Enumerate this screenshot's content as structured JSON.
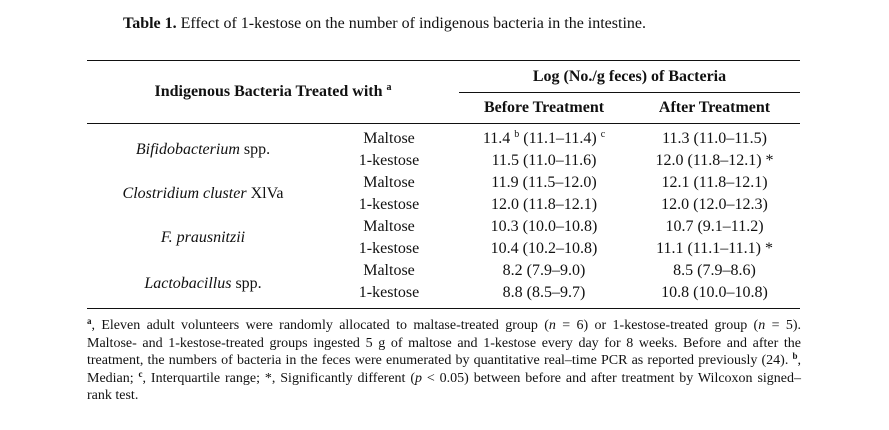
{
  "caption": {
    "label": "Table 1.",
    "text": "Effect of 1-kestose on the number of indigenous bacteria in the intestine."
  },
  "header": {
    "col1": "Indigenous Bacteria Treated with",
    "col1_sup": "a",
    "group": "Log (No./g feces) of Bacteria",
    "before": "Before Treatment",
    "after": "After Treatment"
  },
  "rows": [
    {
      "bacteria_italic": "Bifidobacterium",
      "bacteria_rest": " spp.",
      "treatment": "Maltose",
      "before_main": "11.4",
      "before_sup1": "b",
      "before_iqr": "(11.1–11.4)",
      "before_sup2": "c",
      "after": "11.3 (11.0–11.5)"
    },
    {
      "treatment": "1-kestose",
      "before": "11.5 (11.0–11.6)",
      "after": "12.0 (11.8–12.1) *"
    },
    {
      "bacteria_italic": "Clostridium cluster",
      "bacteria_rest": " XlVa",
      "treatment": "Maltose",
      "before": "11.9 (11.5–12.0)",
      "after": "12.1 (11.8–12.1)"
    },
    {
      "treatment": "1-kestose",
      "before": "12.0 (11.8–12.1)",
      "after": "12.0 (12.0–12.3)"
    },
    {
      "bacteria_italic": "F. prausnitzii",
      "bacteria_rest": "",
      "treatment": "Maltose",
      "before": "10.3 (10.0–10.8)",
      "after": "10.7 (9.1–11.2)"
    },
    {
      "treatment": "1-kestose",
      "before": "10.4 (10.2–10.8)",
      "after": "11.1 (11.1–11.1) *"
    },
    {
      "bacteria_italic": "Lactobacillus",
      "bacteria_rest": " spp.",
      "treatment": "Maltose",
      "before": "8.2 (7.9–9.0)",
      "after": "8.5 (7.9–8.6)"
    },
    {
      "treatment": "1-kestose",
      "before": "8.8 (8.5–9.7)",
      "after": "10.8 (10.0–10.8)"
    }
  ],
  "footnote": {
    "a_sup": "a",
    "t1": ", Eleven adult volunteers were randomly allocated to maltase-treated group (",
    "n1": "n",
    "t2": " = 6) or 1-kestose-treated group (",
    "n2": "n",
    "t3": " = 5). Maltose- and 1-kestose-treated groups ingested 5 g of maltose and 1-kestose every day for 8 weeks. Before and after the treatment, the numbers of bacteria in the feces were enumerated by quantitative real–time PCR as reported previously (24). ",
    "b_sup": "b",
    "t4": ", Median; ",
    "c_sup": "c",
    "t5": ", Interquartile range; *, Significantly different (",
    "p": "p",
    "t6": " < 0.05) between before and after treatment by Wilcoxon signed–rank test."
  }
}
